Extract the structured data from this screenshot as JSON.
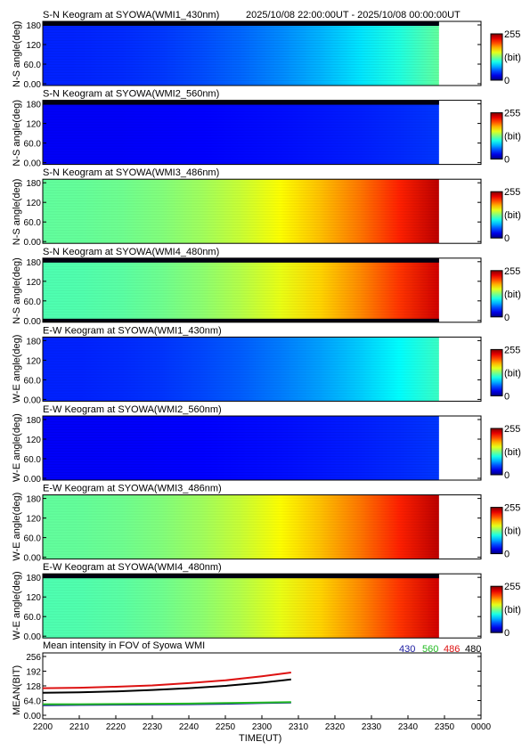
{
  "header": {
    "time_range": "2025/10/08 22:00:00UT - 2025/10/08 00:00:00UT"
  },
  "colorbar": {
    "max_label": "255",
    "unit_label": "(bit)",
    "min_label": "0"
  },
  "keograms": [
    {
      "title": "S-N Keogram at SYOWA(WMI1_430nm)",
      "ylabel": "N-S angle(deg)",
      "yticks": [
        "180",
        "120",
        "60.0",
        "0.00"
      ],
      "intensity_start": 40,
      "intensity_end": 120,
      "edge_dark": "top"
    },
    {
      "title": "S-N Keogram at SYOWA(WMI2_560nm)",
      "ylabel": "N-S angle(deg)",
      "yticks": [
        "180",
        "120",
        "60.0",
        "0.00"
      ],
      "intensity_start": 30,
      "intensity_end": 45,
      "edge_dark": "top"
    },
    {
      "title": "S-N Keogram at SYOWA(WMI3_486nm)",
      "ylabel": "N-S angle(deg)",
      "yticks": [
        "180",
        "120",
        "60.0",
        "0.00"
      ],
      "intensity_start": 120,
      "intensity_end": 240,
      "edge_dark": "none"
    },
    {
      "title": "S-N Keogram at SYOWA(WMI4_480nm)",
      "ylabel": "N-S angle(deg)",
      "yticks": [
        "180",
        "120",
        "60.0",
        "0.00"
      ],
      "intensity_start": 115,
      "intensity_end": 235,
      "edge_dark": "both"
    },
    {
      "title": "E-W Keogram at SYOWA(WMI1_430nm)",
      "ylabel": "W-E angle(deg)",
      "yticks": [
        "180",
        "120",
        "60.0",
        "0.00"
      ],
      "intensity_start": 40,
      "intensity_end": 110,
      "edge_dark": "none"
    },
    {
      "title": "E-W Keogram at SYOWA(WMI2_560nm)",
      "ylabel": "W-E angle(deg)",
      "yticks": [
        "180",
        "120",
        "60.0",
        "0.00"
      ],
      "intensity_start": 30,
      "intensity_end": 45,
      "edge_dark": "none"
    },
    {
      "title": "E-W Keogram at SYOWA(WMI3_486nm)",
      "ylabel": "W-E angle(deg)",
      "yticks": [
        "180",
        "120",
        "60.0",
        "0.00"
      ],
      "intensity_start": 120,
      "intensity_end": 240,
      "edge_dark": "none"
    },
    {
      "title": "E-W Keogram at SYOWA(WMI4_480nm)",
      "ylabel": "W-E angle(deg)",
      "yticks": [
        "180",
        "120",
        "60.0",
        "0.00"
      ],
      "intensity_start": 115,
      "intensity_end": 235,
      "edge_dark": "top"
    }
  ],
  "mean_panel": {
    "title": "Mean intensity in FOV of Syowa WMI",
    "ylabel": "MEAN(BIT)",
    "yticks": [
      "256",
      "192",
      "128",
      "64.0",
      "0.00"
    ],
    "legend": [
      {
        "label": "430",
        "color": "#1a1aa0"
      },
      {
        "label": "560",
        "color": "#22bb22"
      },
      {
        "label": "486",
        "color": "#dd1111"
      },
      {
        "label": "480",
        "color": "#000000"
      }
    ]
  },
  "x_axis": {
    "label": "TIME(UT)",
    "ticks": [
      "2200",
      "2210",
      "2220",
      "2230",
      "2240",
      "2250",
      "2300",
      "2310",
      "2320",
      "2330",
      "2340",
      "2350",
      "0000"
    ]
  },
  "chart_data": {
    "type": "line",
    "title": "Mean intensity in FOV of Syowa WMI",
    "xlabel": "TIME(UT)",
    "ylabel": "MEAN(BIT)",
    "ylim": [
      0,
      256
    ],
    "x": [
      "2200",
      "2210",
      "2220",
      "2230",
      "2240",
      "2250",
      "2300",
      "2308"
    ],
    "series": [
      {
        "name": "430",
        "color": "#1a1aa0",
        "values": [
          44,
          45,
          46,
          47,
          48,
          50,
          53,
          55
        ]
      },
      {
        "name": "560",
        "color": "#22bb22",
        "values": [
          48,
          48,
          49,
          50,
          51,
          53,
          55,
          57
        ]
      },
      {
        "name": "486",
        "color": "#dd1111",
        "values": [
          118,
          120,
          124,
          130,
          140,
          152,
          170,
          186
        ]
      },
      {
        "name": "480",
        "color": "#000000",
        "values": [
          98,
          100,
          104,
          110,
          118,
          128,
          142,
          156
        ]
      }
    ]
  }
}
